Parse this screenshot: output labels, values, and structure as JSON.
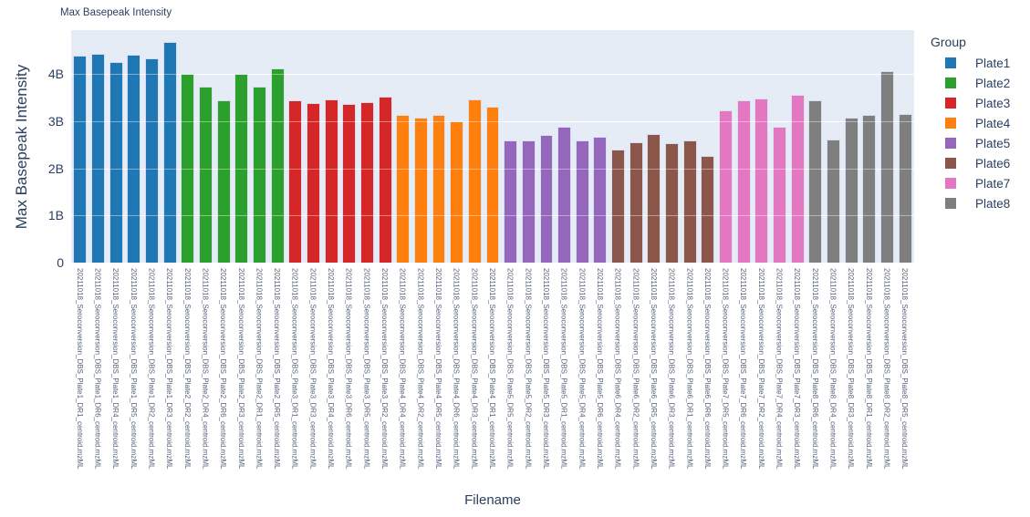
{
  "header": {
    "chart_title": "Max Basepeak Intensity"
  },
  "colors": {
    "plot_background": "#e5ecf6",
    "gridline": "#ffffff",
    "axis_text": "#2a3f5f",
    "xtick_text": "#56627d",
    "bar_edge": "#dce6f4"
  },
  "chart_data": {
    "type": "bar",
    "title": "Max Basepeak Intensity",
    "xlabel": "Filename",
    "ylabel": "Max Basepeak Intensity",
    "legend_title": "Group",
    "legend_position": "right",
    "grid": true,
    "value_unit": "billions",
    "ylim_b": [
      0,
      4.93
    ],
    "yticks": [
      {
        "value_b": 0,
        "label": "0"
      },
      {
        "value_b": 1,
        "label": "1B"
      },
      {
        "value_b": 2,
        "label": "2B"
      },
      {
        "value_b": 3,
        "label": "3B"
      },
      {
        "value_b": 4,
        "label": "4B"
      }
    ],
    "groups": [
      {
        "name": "Plate1",
        "color": "#1f77b4",
        "bars": [
          {
            "filename": "20211018_Seroconversion_DBS_Plate1_DR1_centroid.mzML",
            "value_b": 4.38
          },
          {
            "filename": "20211018_Seroconversion_DBS_Plate1_DR6_centroid.mzML",
            "value_b": 4.42
          },
          {
            "filename": "20211018_Seroconversion_DBS_Plate1_DR4_centroid.mzML",
            "value_b": 4.26
          },
          {
            "filename": "20211018_Seroconversion_DBS_Plate1_DR5_centroid.mzML",
            "value_b": 4.4
          },
          {
            "filename": "20211018_Seroconversion_DBS_Plate1_DR2_centroid.mzML",
            "value_b": 4.33
          },
          {
            "filename": "20211018_Seroconversion_DBS_Plate1_DR3_centroid.mzML",
            "value_b": 4.67
          }
        ]
      },
      {
        "name": "Plate2",
        "color": "#2ca02c",
        "bars": [
          {
            "filename": "20211018_Seroconversion_DBS_Plate2_DR2_centroid.mzML",
            "value_b": 4.0
          },
          {
            "filename": "20211018_Seroconversion_DBS_Plate2_DR4_centroid.mzML",
            "value_b": 3.74
          },
          {
            "filename": "20211018_Seroconversion_DBS_Plate2_DR6_centroid.mzML",
            "value_b": 3.44
          },
          {
            "filename": "20211018_Seroconversion_DBS_Plate2_DR3_centroid.mzML",
            "value_b": 4.01
          },
          {
            "filename": "20211018_Seroconversion_DBS_Plate2_DR1_centroid.mzML",
            "value_b": 3.74
          },
          {
            "filename": "20211018_Seroconversion_DBS_Plate2_DR5_centroid.mzML",
            "value_b": 4.11
          }
        ]
      },
      {
        "name": "Plate3",
        "color": "#d62728",
        "bars": [
          {
            "filename": "20211018_Seroconversion_DBS_Plate3_DR1_centroid.mzML",
            "value_b": 3.45
          },
          {
            "filename": "20211018_Seroconversion_DBS_Plate3_DR3_centroid.mzML",
            "value_b": 3.39
          },
          {
            "filename": "20211018_Seroconversion_DBS_Plate3_DR4_centroid.mzML",
            "value_b": 3.46
          },
          {
            "filename": "20211018_Seroconversion_DBS_Plate3_DR6_centroid.mzML",
            "value_b": 3.37
          },
          {
            "filename": "20211018_Seroconversion_DBS_Plate3_DR5_centroid.mzML",
            "value_b": 3.4
          },
          {
            "filename": "20211018_Seroconversion_DBS_Plate3_DR2_centroid.mzML",
            "value_b": 3.51
          }
        ]
      },
      {
        "name": "Plate4",
        "color": "#ff7f0e",
        "bars": [
          {
            "filename": "20211018_Seroconversion_DBS_Plate4_DR4_centroid.mzML",
            "value_b": 3.13
          },
          {
            "filename": "20211018_Seroconversion_DBS_Plate4_DR2_centroid.mzML",
            "value_b": 3.08
          },
          {
            "filename": "20211018_Seroconversion_DBS_Plate4_DR5_centroid.mzML",
            "value_b": 3.13
          },
          {
            "filename": "20211018_Seroconversion_DBS_Plate4_DR6_centroid.mzML",
            "value_b": 3.0
          },
          {
            "filename": "20211018_Seroconversion_DBS_Plate4_DR3_centroid.mzML",
            "value_b": 3.46
          },
          {
            "filename": "20211018_Seroconversion_DBS_Plate4_DR1_centroid.mzML",
            "value_b": 3.3
          }
        ]
      },
      {
        "name": "Plate5",
        "color": "#9467bd",
        "bars": [
          {
            "filename": "20211018_Seroconversion_DBS_Plate5_DR5_centroid.mzML",
            "value_b": 2.6
          },
          {
            "filename": "20211018_Seroconversion_DBS_Plate5_DR2_centroid.mzML",
            "value_b": 2.6
          },
          {
            "filename": "20211018_Seroconversion_DBS_Plate5_DR3_centroid.mzML",
            "value_b": 2.7
          },
          {
            "filename": "20211018_Seroconversion_DBS_Plate5_DR1_centroid.mzML",
            "value_b": 2.88
          },
          {
            "filename": "20211018_Seroconversion_DBS_Plate5_DR4_centroid.mzML",
            "value_b": 2.6
          },
          {
            "filename": "20211018_Seroconversion_DBS_Plate5_DR6_centroid.mzML",
            "value_b": 2.66
          }
        ]
      },
      {
        "name": "Plate6",
        "color": "#8c564b",
        "bars": [
          {
            "filename": "20211018_Seroconversion_DBS_Plate6_DR4_centroid.mzML",
            "value_b": 2.39
          },
          {
            "filename": "20211018_Seroconversion_DBS_Plate6_DR2_centroid.mzML",
            "value_b": 2.55
          },
          {
            "filename": "20211018_Seroconversion_DBS_Plate6_DR5_centroid.mzML",
            "value_b": 2.72
          },
          {
            "filename": "20211018_Seroconversion_DBS_Plate6_DR3_centroid.mzML",
            "value_b": 2.53
          },
          {
            "filename": "20211018_Seroconversion_DBS_Plate6_DR1_centroid.mzML",
            "value_b": 2.59
          },
          {
            "filename": "20211018_Seroconversion_DBS_Plate6_DR6_centroid.mzML",
            "value_b": 2.26
          }
        ]
      },
      {
        "name": "Plate7",
        "color": "#e377c2",
        "bars": [
          {
            "filename": "20211018_Seroconversion_DBS_Plate7_DR5_centroid.mzML",
            "value_b": 3.22
          },
          {
            "filename": "20211018_Seroconversion_DBS_Plate7_DR6_centroid.mzML",
            "value_b": 3.44
          },
          {
            "filename": "20211018_Seroconversion_DBS_Plate7_DR2_centroid.mzML",
            "value_b": 3.48
          },
          {
            "filename": "20211018_Seroconversion_DBS_Plate7_DR4_centroid.mzML",
            "value_b": 2.89
          },
          {
            "filename": "20211018_Seroconversion_DBS_Plate7_DR3_centroid.mzML",
            "value_b": 3.55
          }
        ]
      },
      {
        "name": "Plate8",
        "color": "#7f7f7f",
        "bars": [
          {
            "filename": "20211018_Seroconversion_DBS_Plate8_DR6_centroid.mzML",
            "value_b": 3.44
          },
          {
            "filename": "20211018_Seroconversion_DBS_Plate8_DR4_centroid.mzML",
            "value_b": 2.61
          },
          {
            "filename": "20211018_Seroconversion_DBS_Plate8_DR3_centroid.mzML",
            "value_b": 3.07
          },
          {
            "filename": "20211018_Seroconversion_DBS_Plate8_DR1_centroid.mzML",
            "value_b": 3.14
          },
          {
            "filename": "20211018_Seroconversion_DBS_Plate8_DR2_centroid.mzML",
            "value_b": 4.06
          },
          {
            "filename": "20211018_Seroconversion_DBS_Plate8_DR5_centroid.mzML",
            "value_b": 3.15
          }
        ]
      }
    ]
  }
}
